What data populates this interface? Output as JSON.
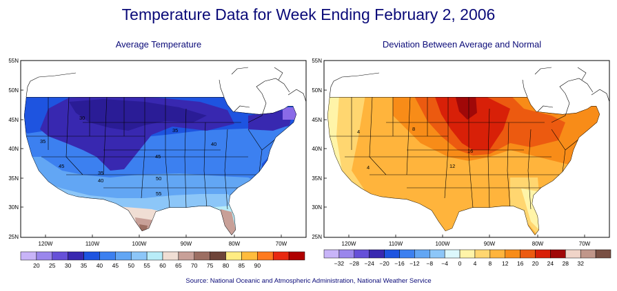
{
  "title": "Temperature Data for Week Ending February 2, 2006",
  "source": "Source:  National Oceanic and Atmospheric Administration, National Weather Service",
  "maps": [
    {
      "title": "Average Temperature",
      "lat_ticks": [
        "55N",
        "50N",
        "45N",
        "40N",
        "35N",
        "30N",
        "25N"
      ],
      "lon_ticks": [
        "120W",
        "110W",
        "100W",
        "90W",
        "80W",
        "70W"
      ],
      "legend_labels": [
        "20",
        "25",
        "30",
        "35",
        "40",
        "45",
        "50",
        "55",
        "60",
        "65",
        "70",
        "75",
        "80",
        "85",
        "90"
      ],
      "legend_colors": [
        "#c8b4f8",
        "#9a86ec",
        "#6650d8",
        "#3828b0",
        "#1e54e0",
        "#3c80f0",
        "#62a6f4",
        "#8cc6f8",
        "#b8ecf8",
        "#f0ded4",
        "#c8a098",
        "#9c6e62",
        "#6e4438",
        "#ffec82",
        "#ffbc3c",
        "#ff7a1e",
        "#e82810",
        "#b00000"
      ],
      "contour_labels": [
        "30",
        "35",
        "35",
        "40",
        "45",
        "45",
        "35",
        "40",
        "50",
        "55"
      ]
    },
    {
      "title": "Deviation Between Average and Normal",
      "lat_ticks": [
        "55N",
        "50N",
        "45N",
        "40N",
        "35N",
        "30N",
        "25N"
      ],
      "lon_ticks": [
        "120W",
        "110W",
        "100W",
        "90W",
        "80W",
        "70W"
      ],
      "legend_labels": [
        "−32",
        "−28",
        "−24",
        "−20",
        "−16",
        "−12",
        "−8",
        "−4",
        "0",
        "4",
        "8",
        "12",
        "16",
        "20",
        "24",
        "28",
        "32"
      ],
      "legend_colors": [
        "#c8b4f8",
        "#9a86ec",
        "#6650d8",
        "#3828b0",
        "#1e54e0",
        "#3c80f0",
        "#62a6f4",
        "#8cc6f8",
        "#dcf8fc",
        "#fff4a8",
        "#ffd670",
        "#ffb43c",
        "#f88c18",
        "#ec5a10",
        "#d82008",
        "#a00808",
        "#f0d4c8",
        "#c0968a",
        "#7a5044"
      ],
      "contour_labels": [
        "4",
        "4",
        "8",
        "16",
        "12"
      ]
    }
  ]
}
